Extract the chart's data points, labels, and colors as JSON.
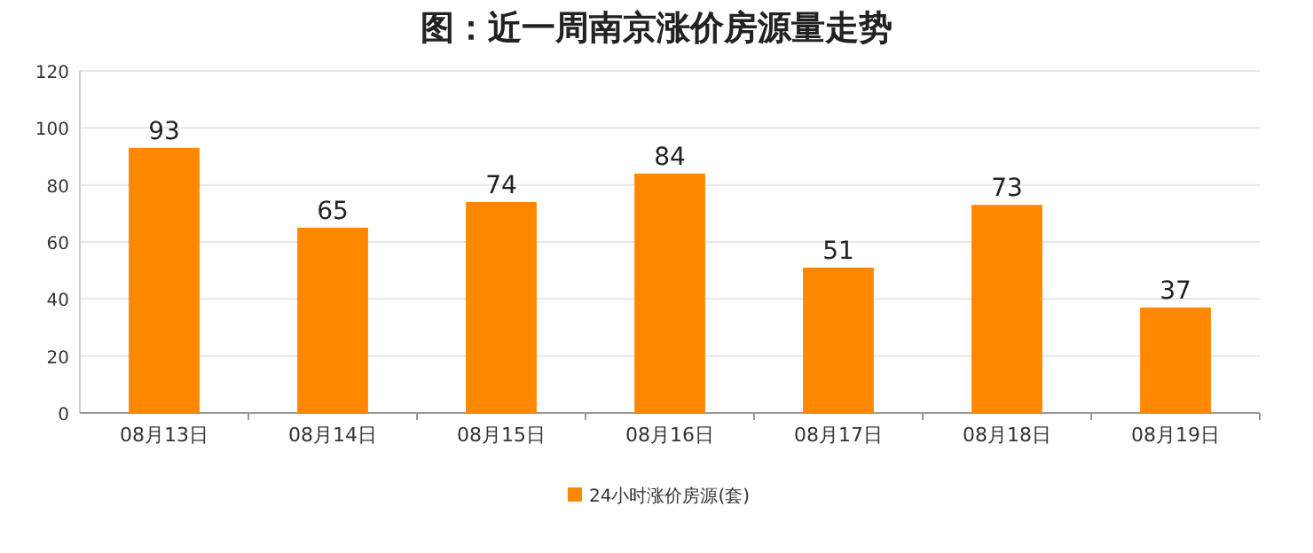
{
  "chart_data": {
    "type": "bar",
    "title": "图：近一周南京涨价房源量走势",
    "categories": [
      "08月13日",
      "08月14日",
      "08月15日",
      "08月16日",
      "08月17日",
      "08月18日",
      "08月19日"
    ],
    "series": [
      {
        "name": "24小时涨价房源(套)",
        "color": "#ff8800",
        "values": [
          93,
          65,
          74,
          84,
          51,
          73,
          37
        ]
      }
    ],
    "ylim": [
      0,
      120
    ],
    "yticks": [
      0,
      20,
      40,
      60,
      80,
      100,
      120
    ],
    "grid": "y",
    "legend": "bottom",
    "data_labels": true
  }
}
